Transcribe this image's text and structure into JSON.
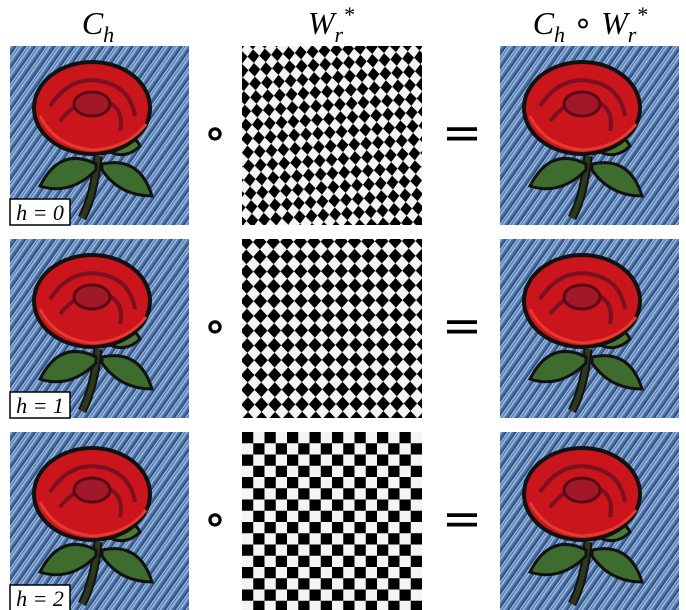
{
  "headers": [
    {
      "parts": [
        {
          "text": "C"
        },
        {
          "text": "h",
          "sub": true
        }
      ]
    },
    {
      "parts": [
        {
          "text": "W"
        },
        {
          "text": "r",
          "sub": true
        },
        {
          "text": "*",
          "sup": true
        }
      ]
    },
    {
      "parts": [
        {
          "text": "C"
        },
        {
          "text": "h",
          "sub": true
        },
        {
          "text": " ∘ "
        },
        {
          "text": "W"
        },
        {
          "text": "r",
          "sub": true
        },
        {
          "text": "*",
          "sup": true
        }
      ]
    }
  ],
  "operators": {
    "compose": "∘",
    "equals": "="
  },
  "rows": [
    {
      "label": "h = 0"
    },
    {
      "label": "h = 1"
    },
    {
      "label": "h = 2"
    }
  ]
}
